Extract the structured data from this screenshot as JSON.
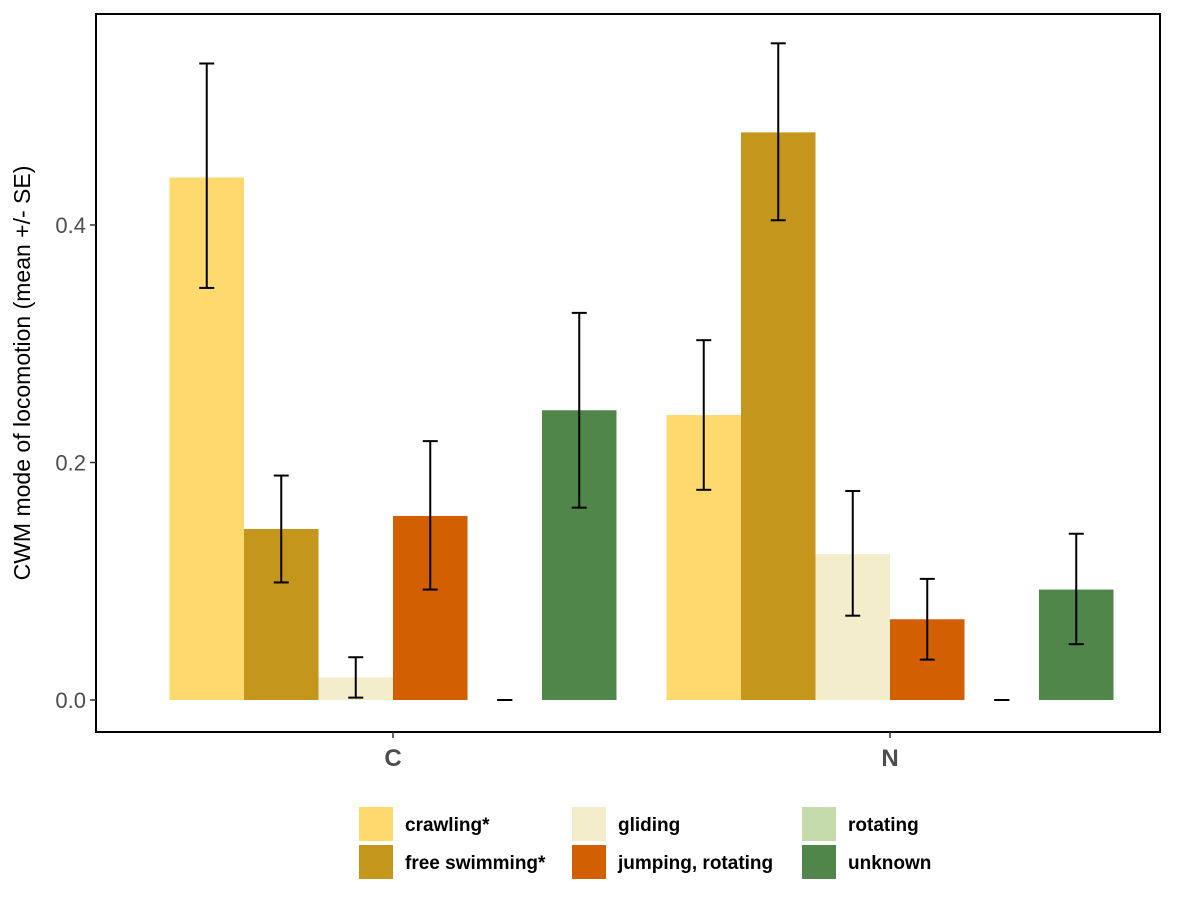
{
  "chart_data": {
    "type": "bar",
    "title": "",
    "xlabel": "",
    "ylabel": "CWM mode of locomotion (mean +/- SE)",
    "categories": [
      "C",
      "N"
    ],
    "ylim": [
      0,
      0.55
    ],
    "yticks": [
      0.0,
      0.2,
      0.4
    ],
    "ytick_labels": [
      "0.0",
      "0.2",
      "0.4"
    ],
    "grid": false,
    "legend_position": "bottom",
    "series": [
      {
        "name": "crawling*",
        "color": "#FDD96E",
        "values": [
          0.44,
          0.24
        ],
        "se_low": [
          0.347,
          0.177
        ],
        "se_high": [
          0.536,
          0.303
        ]
      },
      {
        "name": "free swimming*",
        "color": "#C4961B",
        "values": [
          0.144,
          0.478
        ],
        "se_low": [
          0.099,
          0.404
        ],
        "se_high": [
          0.189,
          0.553
        ]
      },
      {
        "name": "gliding",
        "color": "#F3EDCB",
        "values": [
          0.019,
          0.123
        ],
        "se_low": [
          0.002,
          0.071
        ],
        "se_high": [
          0.036,
          0.176
        ]
      },
      {
        "name": "jumping, rotating",
        "color": "#D26003",
        "values": [
          0.155,
          0.068
        ],
        "se_low": [
          0.093,
          0.034
        ],
        "se_high": [
          0.218,
          0.102
        ]
      },
      {
        "name": "rotating",
        "color": "#C6DBAB",
        "values": [
          0.0,
          0.0
        ],
        "se_low": [
          0.0,
          0.0
        ],
        "se_high": [
          0.0,
          0.0
        ]
      },
      {
        "name": "unknown",
        "color": "#50864A",
        "values": [
          0.244,
          0.093
        ],
        "se_low": [
          0.162,
          0.047
        ],
        "se_high": [
          0.326,
          0.14
        ]
      }
    ]
  }
}
